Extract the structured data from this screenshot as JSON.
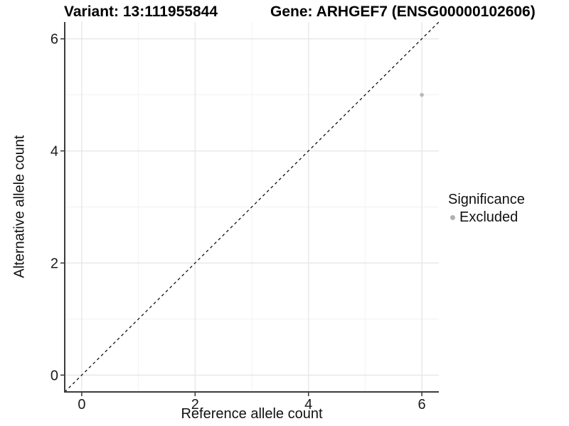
{
  "chart_data": {
    "type": "scatter",
    "title_left": "Variant: 13:111955844",
    "title_right": "Gene: ARHGEF7 (ENSG00000102606)",
    "xlabel": "Reference allele count",
    "ylabel": "Alternative allele count",
    "xlim": [
      -0.3,
      6.3
    ],
    "ylim": [
      -0.3,
      6.3
    ],
    "xticks": [
      0,
      2,
      4,
      6
    ],
    "yticks": [
      0,
      2,
      4,
      6
    ],
    "xminor": [
      1,
      3,
      5
    ],
    "yminor": [
      1,
      3,
      5
    ],
    "grid": "major and minor gridlines on white panel",
    "reference_line": {
      "kind": "identity y=x",
      "style": "dashed",
      "color": "#111111"
    },
    "series": [
      {
        "name": "Excluded",
        "marker": "circle",
        "color": "#b8b8b8",
        "points": [
          {
            "x": 6,
            "y": 5
          }
        ]
      }
    ],
    "legend": {
      "title": "Significance",
      "position": "right",
      "items": [
        {
          "label": "Excluded",
          "color": "#b0b0b0"
        }
      ]
    },
    "style": {
      "background": "#ffffff",
      "grid_major": "#e6e6e6",
      "grid_minor": "#f2f2f2",
      "axis_line": "#3c3c3c",
      "tick_color": "#333333",
      "tick_label_color": "#1a1a1a"
    }
  }
}
